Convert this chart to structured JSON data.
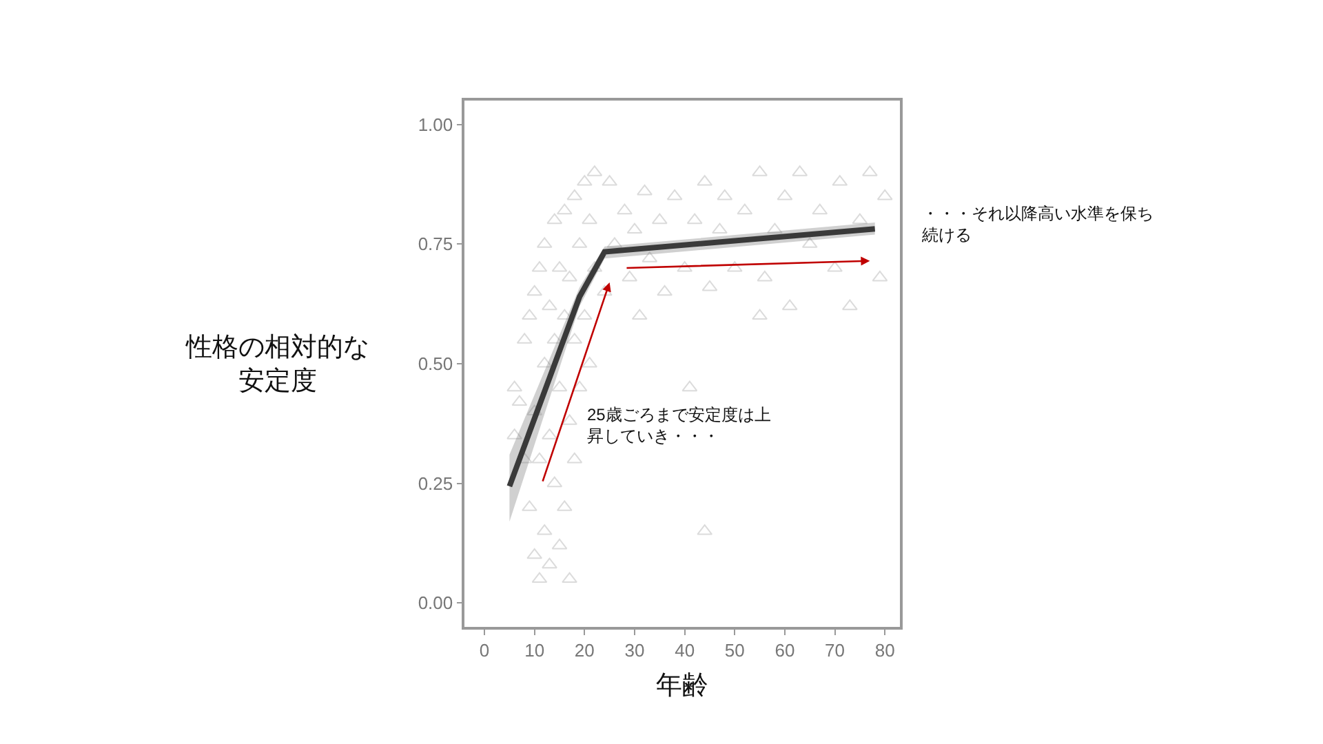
{
  "chart_data": {
    "type": "scatter",
    "xlabel": "年齢",
    "ylabel": "性格の相対的な安定度",
    "xlim": [
      -4,
      83
    ],
    "ylim": [
      -0.05,
      1.05
    ],
    "xticks": [
      0,
      10,
      20,
      30,
      40,
      50,
      60,
      70,
      80
    ],
    "yticks": [
      {
        "value": 0,
        "label": "0.00"
      },
      {
        "value": 0.25,
        "label": "0.25"
      },
      {
        "value": 0.5,
        "label": "0.50"
      },
      {
        "value": 0.75,
        "label": "0.75"
      },
      {
        "value": 1,
        "label": "1.00"
      }
    ],
    "grid": false,
    "annotations": [
      "25歳ごろまで安定度は上昇していき・・・",
      "・・・それ以降高い水準を保ち続ける"
    ],
    "series": [
      {
        "marker": "triangle",
        "color": "#999999",
        "x": [
          6,
          6,
          7,
          8,
          8,
          9,
          9,
          10,
          10,
          10,
          11,
          11,
          11,
          12,
          12,
          12,
          13,
          13,
          13,
          14,
          14,
          14,
          15,
          15,
          15,
          16,
          16,
          16,
          17,
          17,
          17,
          18,
          18,
          18,
          19,
          19,
          20,
          20,
          21,
          21,
          22,
          22,
          24,
          25,
          26,
          28,
          29,
          30,
          31,
          32,
          33,
          35,
          36,
          38,
          40,
          41,
          42,
          44,
          45,
          47,
          48,
          50,
          52,
          55,
          56,
          58,
          60,
          61,
          63,
          65,
          67,
          70,
          71,
          73,
          75,
          77,
          79,
          80,
          44,
          55
        ],
        "values": [
          0.45,
          0.35,
          0.42,
          0.3,
          0.55,
          0.2,
          0.6,
          0.1,
          0.4,
          0.65,
          0.05,
          0.3,
          0.7,
          0.15,
          0.5,
          0.75,
          0.08,
          0.35,
          0.62,
          0.25,
          0.55,
          0.8,
          0.12,
          0.45,
          0.7,
          0.2,
          0.6,
          0.82,
          0.05,
          0.38,
          0.68,
          0.3,
          0.55,
          0.85,
          0.45,
          0.75,
          0.6,
          0.88,
          0.5,
          0.8,
          0.7,
          0.9,
          0.65,
          0.88,
          0.75,
          0.82,
          0.68,
          0.78,
          0.6,
          0.86,
          0.72,
          0.8,
          0.65,
          0.85,
          0.7,
          0.45,
          0.8,
          0.88,
          0.66,
          0.78,
          0.85,
          0.7,
          0.82,
          0.9,
          0.68,
          0.78,
          0.85,
          0.62,
          0.9,
          0.75,
          0.82,
          0.7,
          0.88,
          0.62,
          0.8,
          0.9,
          0.68,
          0.85,
          0.15,
          0.6
        ]
      },
      {
        "type": "line",
        "marker": "none",
        "line_style": "solid",
        "color": "#3a3a3a",
        "x": [
          5,
          19,
          24,
          78
        ],
        "values": [
          0.244,
          0.64,
          0.734,
          0.782
        ],
        "lower": [
          0.17,
          0.62,
          0.72,
          0.77
        ],
        "upper": [
          0.31,
          0.66,
          0.745,
          0.795
        ]
      }
    ]
  }
}
